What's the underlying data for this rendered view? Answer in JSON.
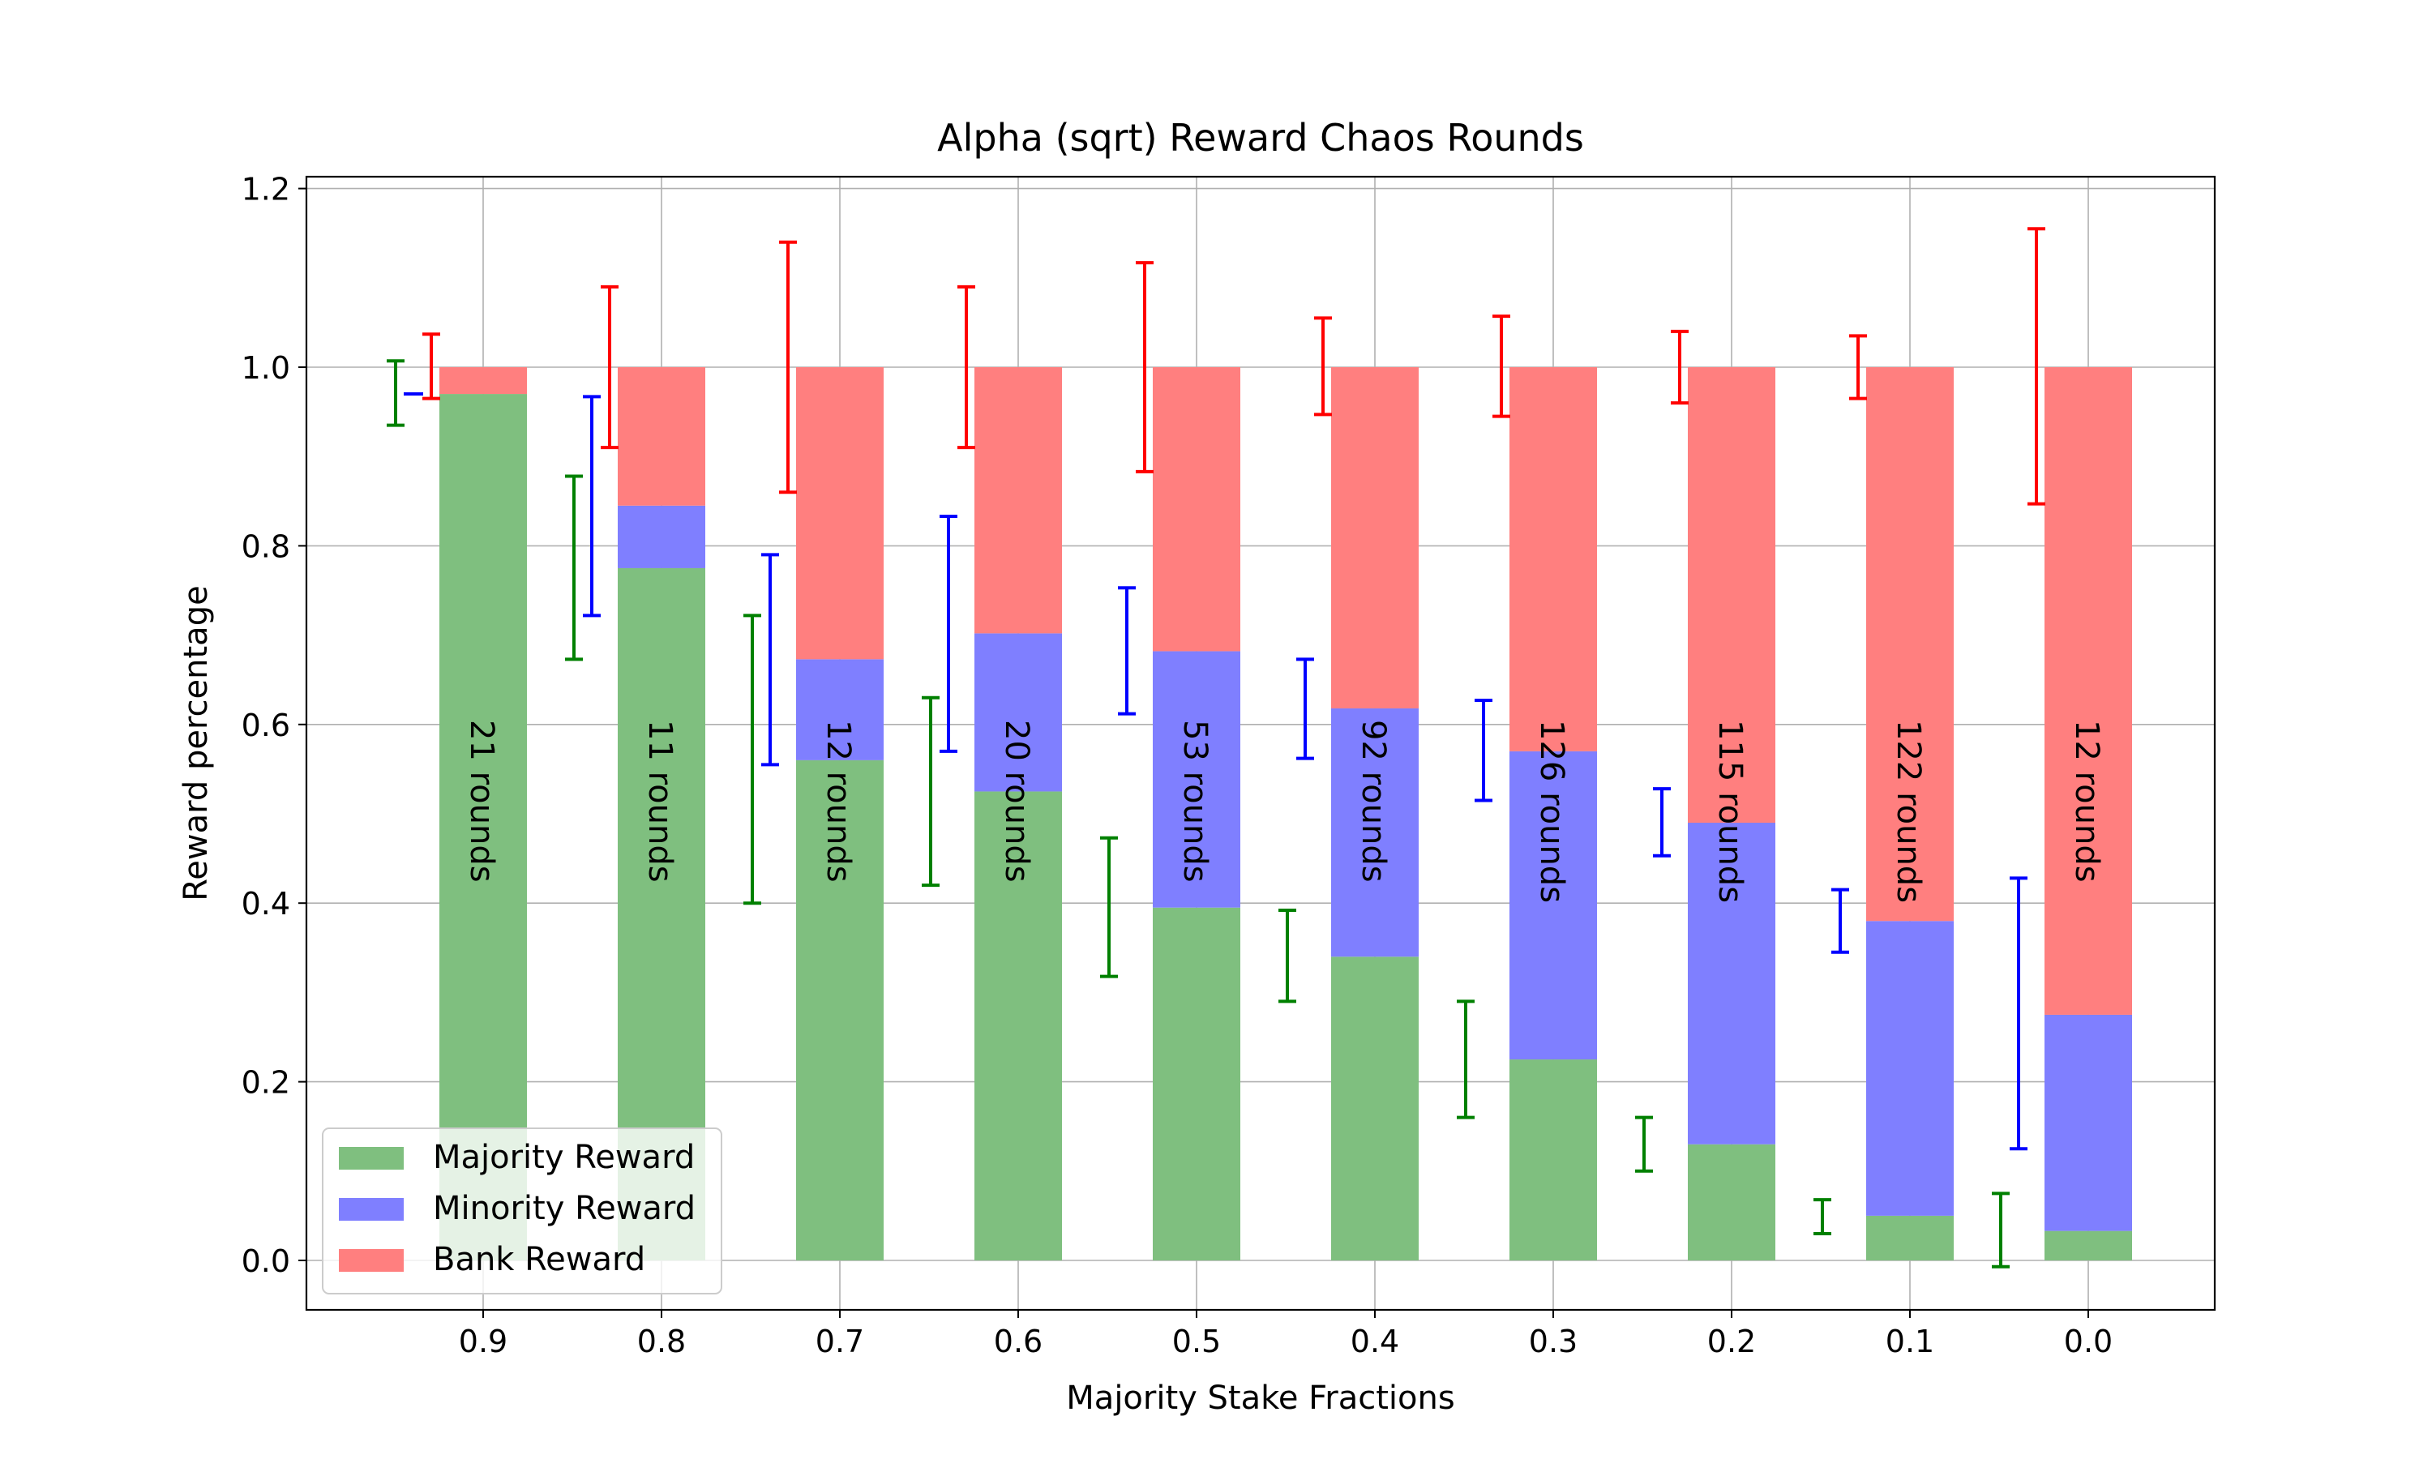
{
  "chart_data": {
    "type": "bar",
    "stacked": true,
    "title": "Alpha (sqrt) Reward Chaos Rounds",
    "xlabel": "Majority Stake Fractions",
    "ylabel": "Reward percentage",
    "categories": [
      "0.9",
      "0.8",
      "0.7",
      "0.6",
      "0.5",
      "0.4",
      "0.3",
      "0.2",
      "0.1",
      "0.0"
    ],
    "ylim": [
      -0.06,
      1.21
    ],
    "yticks": [
      "0.0",
      "0.2",
      "0.4",
      "0.6",
      "0.8",
      "1.0",
      "1.2"
    ],
    "grid": true,
    "legend_position": "lower-left",
    "series": [
      {
        "name": "Majority Reward",
        "color": "#7fbf7f",
        "values": [
          0.97,
          0.775,
          0.56,
          0.525,
          0.395,
          0.34,
          0.225,
          0.13,
          0.05,
          0.033
        ]
      },
      {
        "name": "Minority Reward",
        "color": "#7f7fff",
        "values": [
          0.0,
          0.07,
          0.113,
          0.177,
          0.287,
          0.278,
          0.345,
          0.36,
          0.33,
          0.242
        ]
      },
      {
        "name": "Bank Reward",
        "color": "#ff7f7f",
        "values": [
          0.03,
          0.155,
          0.327,
          0.298,
          0.318,
          0.382,
          0.43,
          0.51,
          0.62,
          0.725
        ]
      }
    ],
    "error_bars": {
      "majority": {
        "color": "#008000",
        "mean": [
          0.97,
          0.775,
          0.56,
          0.525,
          0.395,
          0.34,
          0.225,
          0.13,
          0.05,
          0.033
        ],
        "low": [
          0.935,
          0.673,
          0.4,
          0.42,
          0.318,
          0.29,
          0.16,
          0.1,
          0.03,
          -0.007
        ],
        "high": [
          1.007,
          0.878,
          0.722,
          0.63,
          0.473,
          0.392,
          0.29,
          0.16,
          0.068,
          0.075
        ]
      },
      "minority": {
        "color": "#0000ff",
        "mean": [
          0.0,
          0.07,
          0.113,
          0.177,
          0.287,
          0.278,
          0.345,
          0.36,
          0.33,
          0.242
        ],
        "low": [
          0.97,
          0.722,
          0.555,
          0.57,
          0.612,
          0.562,
          0.515,
          0.453,
          0.345,
          0.125
        ],
        "high": [
          0.97,
          0.967,
          0.79,
          0.833,
          0.753,
          0.673,
          0.627,
          0.528,
          0.415,
          0.428
        ]
      },
      "bank": {
        "color": "#ff0000",
        "mean": [
          0.03,
          0.155,
          0.327,
          0.298,
          0.318,
          0.382,
          0.43,
          0.51,
          0.62,
          0.725
        ],
        "low": [
          0.965,
          0.91,
          0.86,
          0.91,
          0.883,
          0.947,
          0.945,
          0.96,
          0.965,
          0.847
        ],
        "high": [
          1.037,
          1.09,
          1.14,
          1.09,
          1.117,
          1.055,
          1.057,
          1.04,
          1.035,
          1.155
        ]
      }
    },
    "bar_labels": [
      "21 rounds",
      "11 rounds",
      "12 rounds",
      "20 rounds",
      "53 rounds",
      "92 rounds",
      "126 rounds",
      "115 rounds",
      "122 rounds",
      "12 rounds"
    ]
  }
}
